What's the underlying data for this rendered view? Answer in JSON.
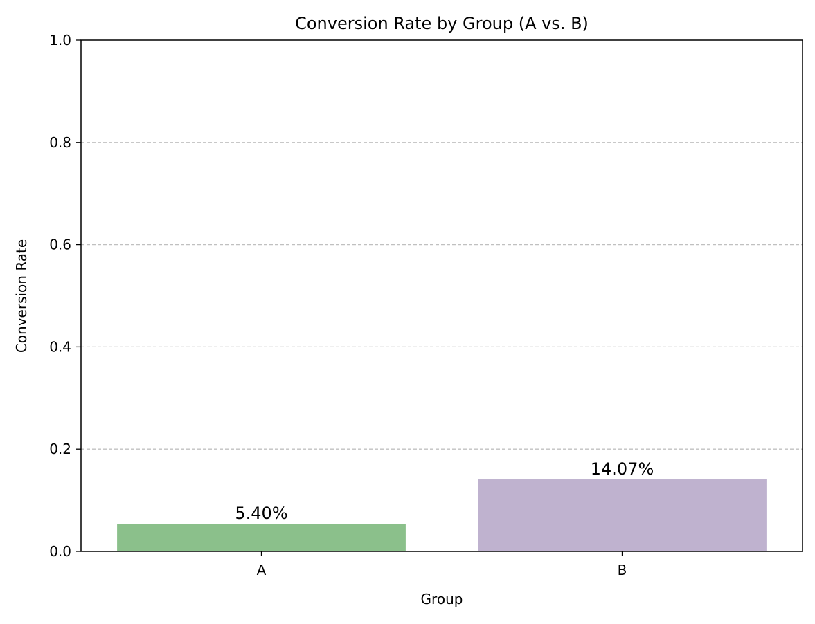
{
  "chart_data": {
    "type": "bar",
    "title": "Conversion Rate by Group (A vs. B)",
    "xlabel": "Group",
    "ylabel": "Conversion Rate",
    "categories": [
      "A",
      "B"
    ],
    "values": [
      0.054,
      0.1407
    ],
    "value_labels": [
      "5.40%",
      "14.07%"
    ],
    "bar_colors": [
      "#8bc08b",
      "#bfb2cf"
    ],
    "ylim": [
      0,
      1
    ],
    "yticks": [
      0.0,
      0.2,
      0.4,
      0.6,
      0.8,
      1.0
    ],
    "ytick_labels": [
      "0.0",
      "0.2",
      "0.4",
      "0.6",
      "0.8",
      "1.0"
    ],
    "grid": "y-dashed",
    "grid_color": "#c0c0c0"
  }
}
